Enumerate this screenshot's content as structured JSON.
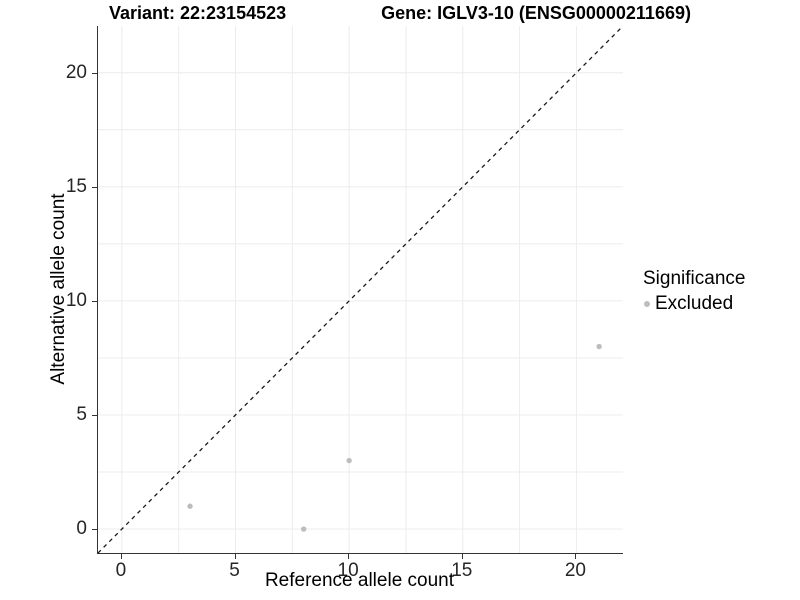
{
  "chart_data": {
    "type": "scatter",
    "title_left": "Variant: 22:23154523",
    "title_right": "Gene: IGLV3-10 (ENSG00000211669)",
    "xlabel": "Reference allele count",
    "ylabel": "Alternative allele count",
    "xlim": [
      -1.05,
      22.05
    ],
    "ylim": [
      -1.05,
      22.05
    ],
    "x_ticks": [
      0,
      5,
      10,
      15,
      20
    ],
    "y_ticks": [
      0,
      5,
      10,
      15,
      20
    ],
    "grid_lines": [
      0,
      2.5,
      5,
      7.5,
      10,
      12.5,
      15,
      17.5,
      20
    ],
    "grid": "on",
    "identity_line": {
      "style": "dashed",
      "x1": -1.05,
      "y1": -1.05,
      "x2": 22.05,
      "y2": 22.05
    },
    "series": [
      {
        "name": "Excluded",
        "color": "#bdbdbd",
        "points": [
          [
            3,
            1
          ],
          [
            8,
            0
          ],
          [
            10,
            3
          ],
          [
            21,
            8
          ]
        ]
      }
    ],
    "legend": {
      "title": "Significance",
      "position": "right",
      "entries": [
        {
          "label": "Excluded",
          "color": "#bdbdbd"
        }
      ]
    },
    "colors": {
      "background": "#ffffff",
      "grid": "#ececec",
      "axis": "#333333",
      "dashed_line": "#1a1a1a",
      "point": "#bdbdbd",
      "text": "#000000",
      "tick_text": "#262626"
    }
  }
}
